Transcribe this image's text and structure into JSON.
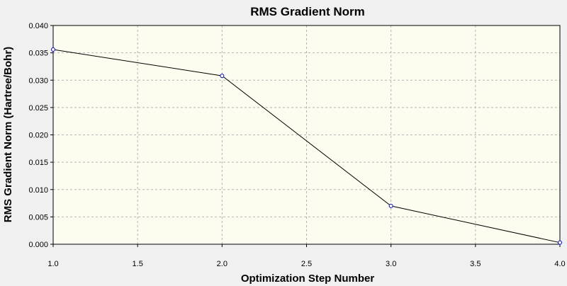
{
  "chart_data": {
    "type": "line",
    "title": "RMS Gradient Norm",
    "xlabel": "Optimization Step Number",
    "ylabel": "RMS Gradient Norm (Hartree/Bohr)",
    "xlim": [
      1.0,
      4.0
    ],
    "ylim": [
      0.0,
      0.04
    ],
    "x_ticks": [
      "1.0",
      "1.5",
      "2.0",
      "2.5",
      "3.0",
      "3.5",
      "4.0"
    ],
    "y_ticks": [
      "0.000",
      "0.005",
      "0.010",
      "0.015",
      "0.020",
      "0.025",
      "0.030",
      "0.035",
      "0.040"
    ],
    "grid": true,
    "series": [
      {
        "x": [
          1.0,
          2.0,
          3.0,
          4.0
        ],
        "y": [
          0.0356,
          0.0308,
          0.007,
          0.0003
        ]
      }
    ],
    "colors": {
      "plot_background": "#fdfdef",
      "window_background": "#f0f0f0",
      "line": "#000000",
      "marker": "#0000ff",
      "grid": "#b4b4b4"
    }
  }
}
